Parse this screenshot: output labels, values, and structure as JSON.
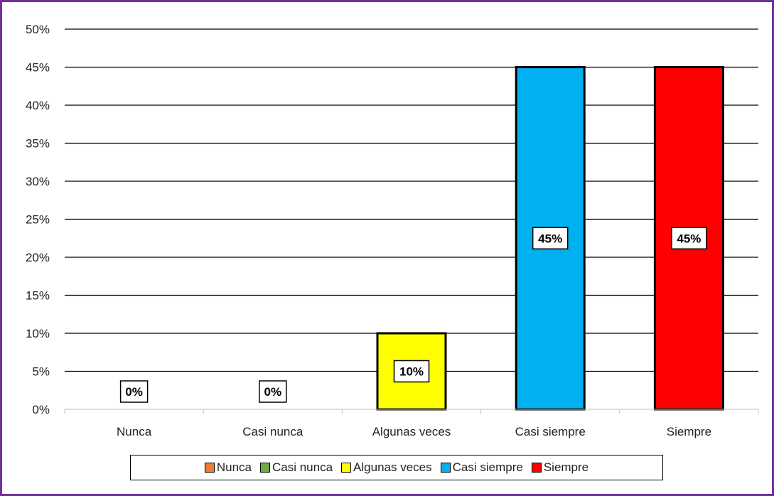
{
  "chart_data": {
    "type": "bar",
    "categories": [
      "Nunca",
      "Casi nunca",
      "Algunas veces",
      "Casi siempre",
      "Siempre"
    ],
    "values": [
      0,
      0,
      10,
      45,
      45
    ],
    "data_labels": [
      "0%",
      "0%",
      "10%",
      "45%",
      "45%"
    ],
    "colors": [
      "#ED7D31",
      "#70AD47",
      "#FFFF00",
      "#00B0F0",
      "#FF0000"
    ],
    "ylim": [
      0,
      50
    ],
    "yticks": [
      "0%",
      "5%",
      "10%",
      "15%",
      "20%",
      "25%",
      "30%",
      "35%",
      "40%",
      "45%",
      "50%"
    ],
    "grid": true,
    "legend_position": "bottom",
    "legend": [
      "Nunca",
      "Casi nunca",
      "Algunas veces",
      "Casi siempre",
      "Siempre"
    ],
    "frame_color": "#7030A0"
  }
}
